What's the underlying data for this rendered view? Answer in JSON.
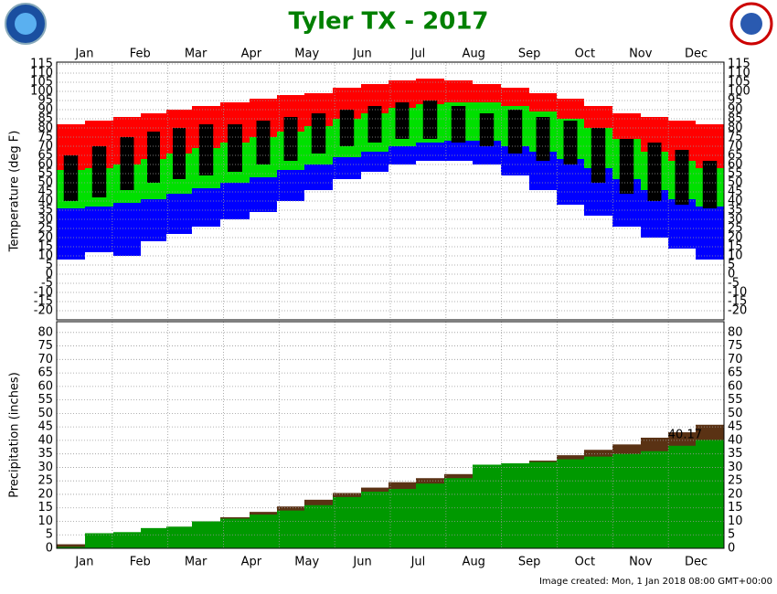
{
  "title": "Tyler TX - 2017",
  "footer": "Image created: Mon, 1 Jan 2018 08:00 GMT+00:00",
  "chart_data": [
    {
      "type": "range",
      "ylabel": "Temperature (deg F)",
      "month_labels": [
        "Jan",
        "Feb",
        "Mar",
        "Apr",
        "May",
        "Jun",
        "Jul",
        "Aug",
        "Sep",
        "Oct",
        "Nov",
        "Dec"
      ],
      "xlim": [
        0,
        365
      ],
      "x": [
        8,
        23,
        39,
        53,
        67,
        81,
        98,
        113,
        128,
        143,
        159,
        174,
        189,
        204,
        220,
        235,
        251,
        266,
        281,
        296,
        312,
        327,
        342,
        357
      ],
      "ylim": [
        -25,
        116
      ],
      "yticks": [
        115,
        110,
        105,
        100,
        95,
        90,
        85,
        80,
        75,
        70,
        65,
        60,
        55,
        50,
        45,
        40,
        35,
        30,
        25,
        20,
        15,
        10,
        5,
        0,
        -5,
        -10,
        -15,
        -20
      ],
      "grid": true,
      "series": [
        {
          "key": "record_high",
          "color": "#ff0000",
          "values": [
            82,
            84,
            86,
            88,
            90,
            92,
            94,
            96,
            98,
            99,
            102,
            104,
            106,
            107,
            106,
            104,
            102,
            99,
            96,
            92,
            88,
            86,
            84,
            82
          ]
        },
        {
          "key": "normal_high",
          "color": "#00e000",
          "values": [
            57,
            58,
            60,
            63,
            66,
            69,
            72,
            75,
            78,
            81,
            85,
            88,
            91,
            93,
            94,
            94,
            92,
            89,
            85,
            80,
            74,
            67,
            62,
            58
          ]
        },
        {
          "key": "normal_low",
          "color": "#0000ff",
          "values": [
            36,
            37,
            39,
            41,
            44,
            47,
            50,
            53,
            57,
            60,
            64,
            67,
            70,
            72,
            73,
            73,
            70,
            67,
            63,
            58,
            52,
            46,
            41,
            37
          ]
        },
        {
          "key": "record_low",
          "color": "#0000ff",
          "values": [
            8,
            12,
            10,
            18,
            22,
            26,
            30,
            34,
            40,
            46,
            52,
            56,
            60,
            62,
            62,
            60,
            54,
            46,
            38,
            32,
            26,
            20,
            14,
            8
          ]
        },
        {
          "key": "observed_high",
          "color": "#000000",
          "values": [
            65,
            70,
            75,
            78,
            80,
            82,
            82,
            84,
            86,
            88,
            90,
            92,
            94,
            95,
            92,
            88,
            90,
            86,
            84,
            80,
            74,
            72,
            68,
            62
          ]
        },
        {
          "key": "observed_low",
          "color": "#000000",
          "values": [
            40,
            42,
            46,
            50,
            52,
            54,
            56,
            60,
            62,
            66,
            70,
            72,
            74,
            74,
            72,
            70,
            66,
            62,
            60,
            50,
            44,
            40,
            38,
            36
          ]
        }
      ]
    },
    {
      "type": "area",
      "ylabel": "Precipitation (inches)",
      "month_labels": [
        "Jan",
        "Feb",
        "Mar",
        "Apr",
        "May",
        "Jun",
        "Jul",
        "Aug",
        "Sep",
        "Oct",
        "Nov",
        "Dec"
      ],
      "xlim": [
        0,
        365
      ],
      "x": [
        8,
        23,
        39,
        53,
        67,
        81,
        98,
        113,
        128,
        143,
        159,
        174,
        189,
        204,
        220,
        235,
        251,
        266,
        281,
        296,
        312,
        327,
        342,
        357
      ],
      "ylim": [
        0,
        84
      ],
      "yticks": [
        80,
        75,
        70,
        65,
        60,
        55,
        50,
        45,
        40,
        35,
        30,
        25,
        20,
        15,
        10,
        5,
        0
      ],
      "grid": true,
      "series": [
        {
          "key": "normal",
          "color": "#5a3214",
          "values": [
            1.5,
            3,
            4.5,
            6,
            8,
            10,
            11.5,
            13.5,
            15.5,
            18,
            20.5,
            22.5,
            24.5,
            26,
            27.5,
            29,
            30.5,
            32.5,
            34.5,
            36.5,
            38.5,
            41,
            43,
            45.8
          ]
        },
        {
          "key": "observed",
          "color": "#009900",
          "values": [
            0.5,
            5.6,
            6,
            7.5,
            8,
            10,
            11,
            12.5,
            14,
            16,
            19,
            21,
            22,
            24,
            26,
            31,
            31.5,
            32,
            33,
            34,
            35,
            36,
            38,
            40.17
          ]
        }
      ]
    }
  ]
}
